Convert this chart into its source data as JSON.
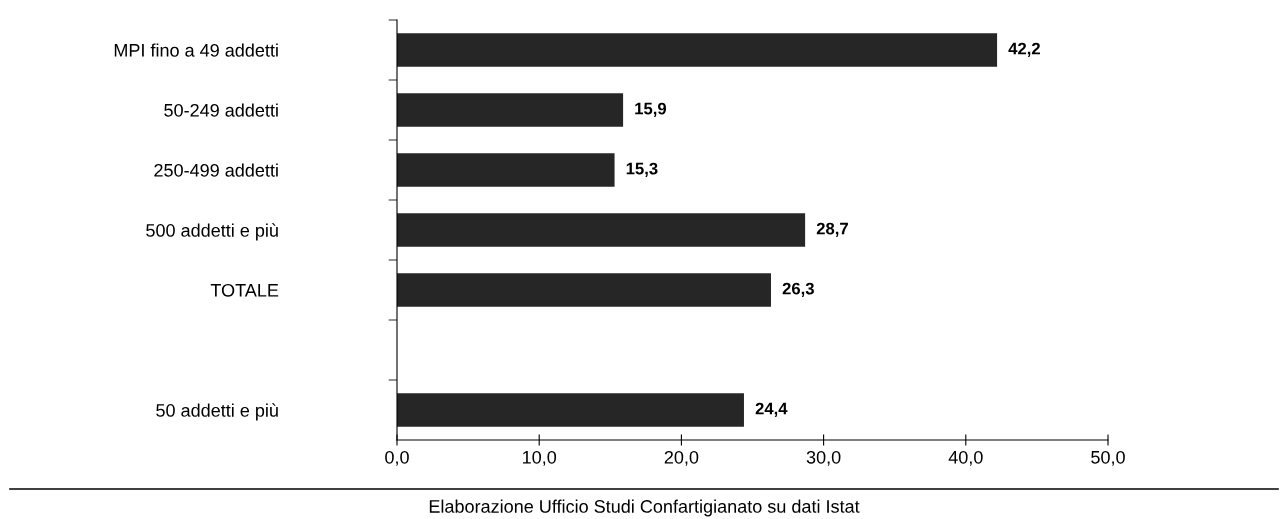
{
  "chart_data": {
    "type": "bar",
    "orientation": "horizontal",
    "categories": [
      "MPI fino a 49 addetti",
      "50-249 addetti",
      "250-499 addetti",
      "500 addetti e più",
      "TOTALE",
      null,
      "50 addetti e più"
    ],
    "values": [
      42.2,
      15.9,
      15.3,
      28.7,
      26.3,
      null,
      24.4
    ],
    "value_labels": [
      "42,2",
      "15,9",
      "15,3",
      "28,7",
      "26,3",
      null,
      "24,4"
    ],
    "color": "#262626",
    "xlim": [
      0,
      50
    ],
    "xticks": [
      {
        "value": 0,
        "label": "0,0"
      },
      {
        "value": 10,
        "label": "10,0"
      },
      {
        "value": 20,
        "label": "20,0"
      },
      {
        "value": 30,
        "label": "30,0"
      },
      {
        "value": 40,
        "label": "40,0"
      },
      {
        "value": 50,
        "label": "50,0"
      }
    ],
    "grid": false,
    "annotations": [
      "Elaborazione Ufficio Studi Confartigianato su dati Istat"
    ]
  }
}
